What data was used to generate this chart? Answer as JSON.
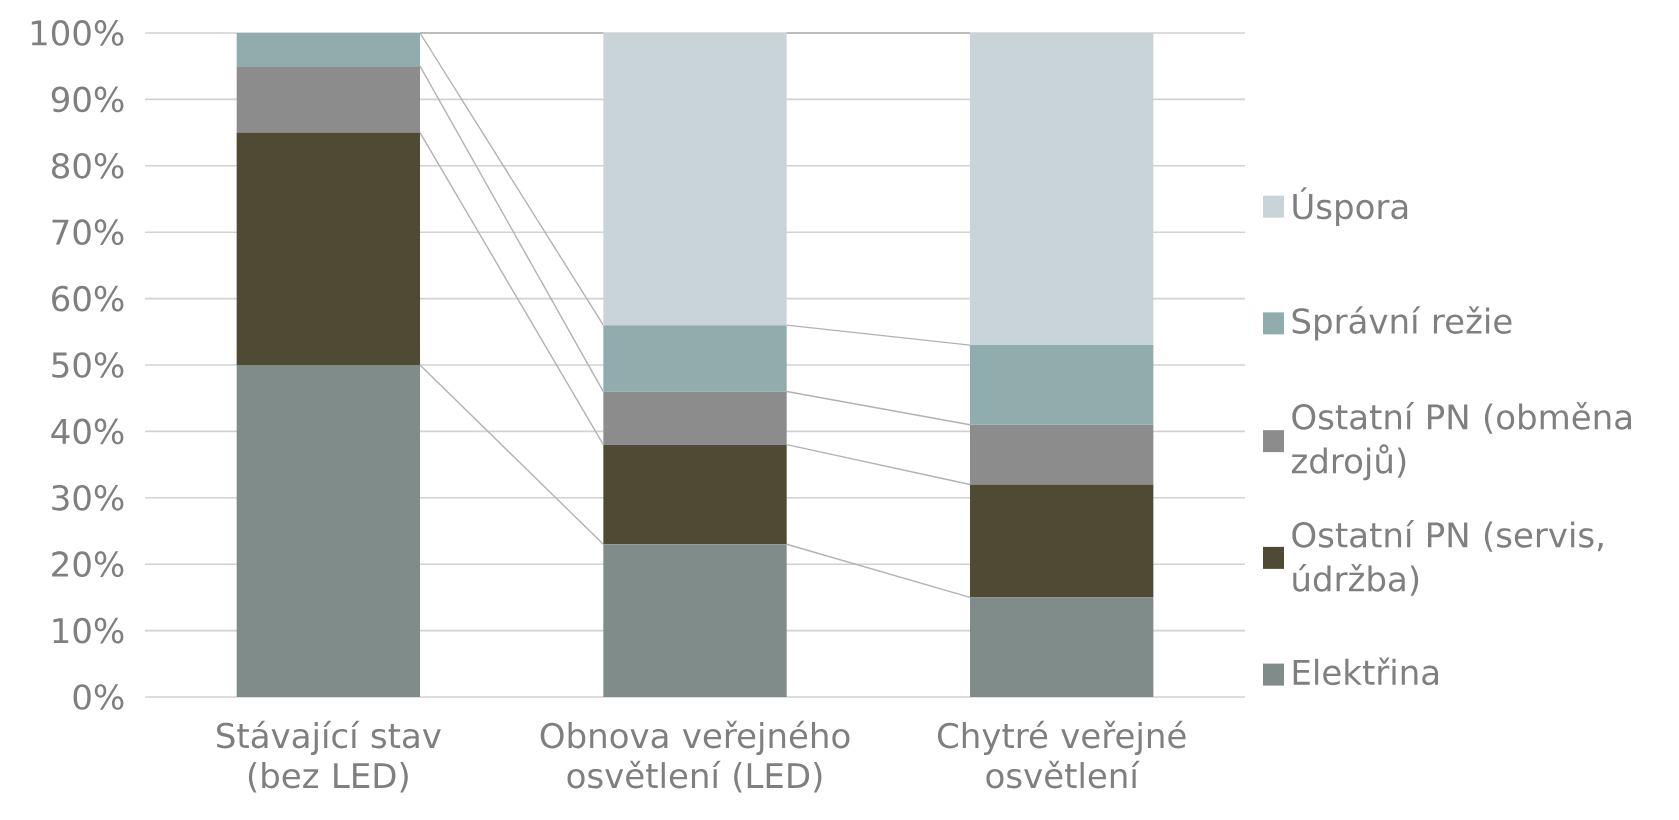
{
  "chart_data": {
    "type": "bar",
    "stacked": true,
    "categories": [
      "Stávající stav (bez LED)",
      "Obnova veřejného osvětlení (LED)",
      "Chytré veřejné osvětlení"
    ],
    "series": [
      {
        "name": "Elektřina",
        "color": "#7f8c8a",
        "values": [
          50,
          23,
          15
        ]
      },
      {
        "name": "Ostatní PN (servis, údržba)",
        "color": "#4e4a33",
        "values": [
          35,
          15,
          17
        ]
      },
      {
        "name": "Ostatní PN (obměna zdrojů)",
        "color": "#8c8c8c",
        "values": [
          10,
          8,
          9
        ]
      },
      {
        "name": "Správní režie",
        "color": "#91acad",
        "values": [
          5,
          10,
          12
        ]
      },
      {
        "name": "Úspora",
        "color": "#c8d4d8",
        "values": [
          0,
          44,
          47
        ]
      }
    ],
    "ylim": [
      0,
      100
    ],
    "yticks": [
      {
        "value": 0,
        "label": "0%"
      },
      {
        "value": 10,
        "label": "10%"
      },
      {
        "value": 20,
        "label": "20%"
      },
      {
        "value": 30,
        "label": "30%"
      },
      {
        "value": 40,
        "label": "40%"
      },
      {
        "value": 50,
        "label": "50%"
      },
      {
        "value": 60,
        "label": "60%"
      },
      {
        "value": 70,
        "label": "70%"
      },
      {
        "value": 80,
        "label": "80%"
      },
      {
        "value": 90,
        "label": "90%"
      },
      {
        "value": 100,
        "label": "100%"
      }
    ],
    "grid": "y",
    "legend": "right"
  }
}
